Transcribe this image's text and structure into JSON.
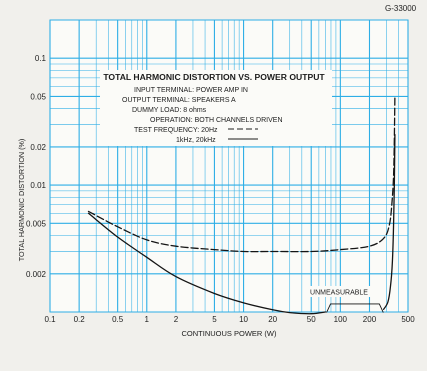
{
  "chart_data": {
    "type": "line",
    "id_label": "G-33000",
    "title": "TOTAL HARMONIC DISTORTION VS. POWER OUTPUT",
    "info_lines": [
      "INPUT TERMINAL: POWER AMP IN",
      "OUTPUT TERMINAL: SPEAKERS A",
      "DUMMY LOAD: 8 ohms",
      "OPERATION: BOTH CHANNELS DRIVEN",
      "TEST FREQUENCY: 20Hz"
    ],
    "legend": [
      {
        "label": "TEST FREQUENCY: 20Hz",
        "style": "dashed"
      },
      {
        "label": "1kHz, 20kHz",
        "style": "solid"
      }
    ],
    "annotation": "UNMEASURABLE",
    "xlabel": "CONTINUOUS POWER (W)",
    "ylabel": "TOTAL HARMONIC DISTORTION (%)",
    "x_scale": "log",
    "y_scale": "log",
    "xlim": [
      0.1,
      500
    ],
    "ylim": [
      0.001,
      0.2
    ],
    "x_ticks": [
      "0.1",
      "0.2",
      "0.5",
      "1",
      "2",
      "5",
      "10",
      "20",
      "50",
      "100",
      "200",
      "500"
    ],
    "y_ticks": [
      "0.1",
      "0.05",
      "0.02",
      "0.01",
      "0.005",
      "0.002"
    ],
    "grid": true,
    "series": [
      {
        "style": "dashed",
        "points": [
          [
            0.25,
            0.0062
          ],
          [
            0.5,
            0.0047
          ],
          [
            1,
            0.0037
          ],
          [
            2,
            0.0033
          ],
          [
            5,
            0.0031
          ],
          [
            10,
            0.003
          ],
          [
            20,
            0.003
          ],
          [
            50,
            0.003
          ],
          [
            100,
            0.0031
          ],
          [
            200,
            0.0033
          ],
          [
            280,
            0.0038
          ],
          [
            320,
            0.0048
          ],
          [
            340,
            0.007
          ],
          [
            355,
            0.012
          ],
          [
            362,
            0.025
          ],
          [
            366,
            0.05
          ]
        ]
      },
      {
        "style": "solid",
        "points": [
          [
            0.25,
            0.006
          ],
          [
            0.5,
            0.0039
          ],
          [
            1,
            0.0027
          ],
          [
            2,
            0.0019
          ],
          [
            5,
            0.0014
          ],
          [
            10,
            0.00118
          ],
          [
            20,
            0.00104
          ],
          [
            30,
            0.00099
          ],
          [
            50,
            0.00097
          ],
          [
            70,
            0.001
          ]
        ]
      },
      {
        "style": "solid",
        "points": [
          [
            280,
            0.00105
          ],
          [
            310,
            0.0012
          ],
          [
            330,
            0.0016
          ],
          [
            345,
            0.0025
          ],
          [
            355,
            0.005
          ],
          [
            362,
            0.011
          ],
          [
            366,
            0.025
          ]
        ]
      }
    ]
  }
}
